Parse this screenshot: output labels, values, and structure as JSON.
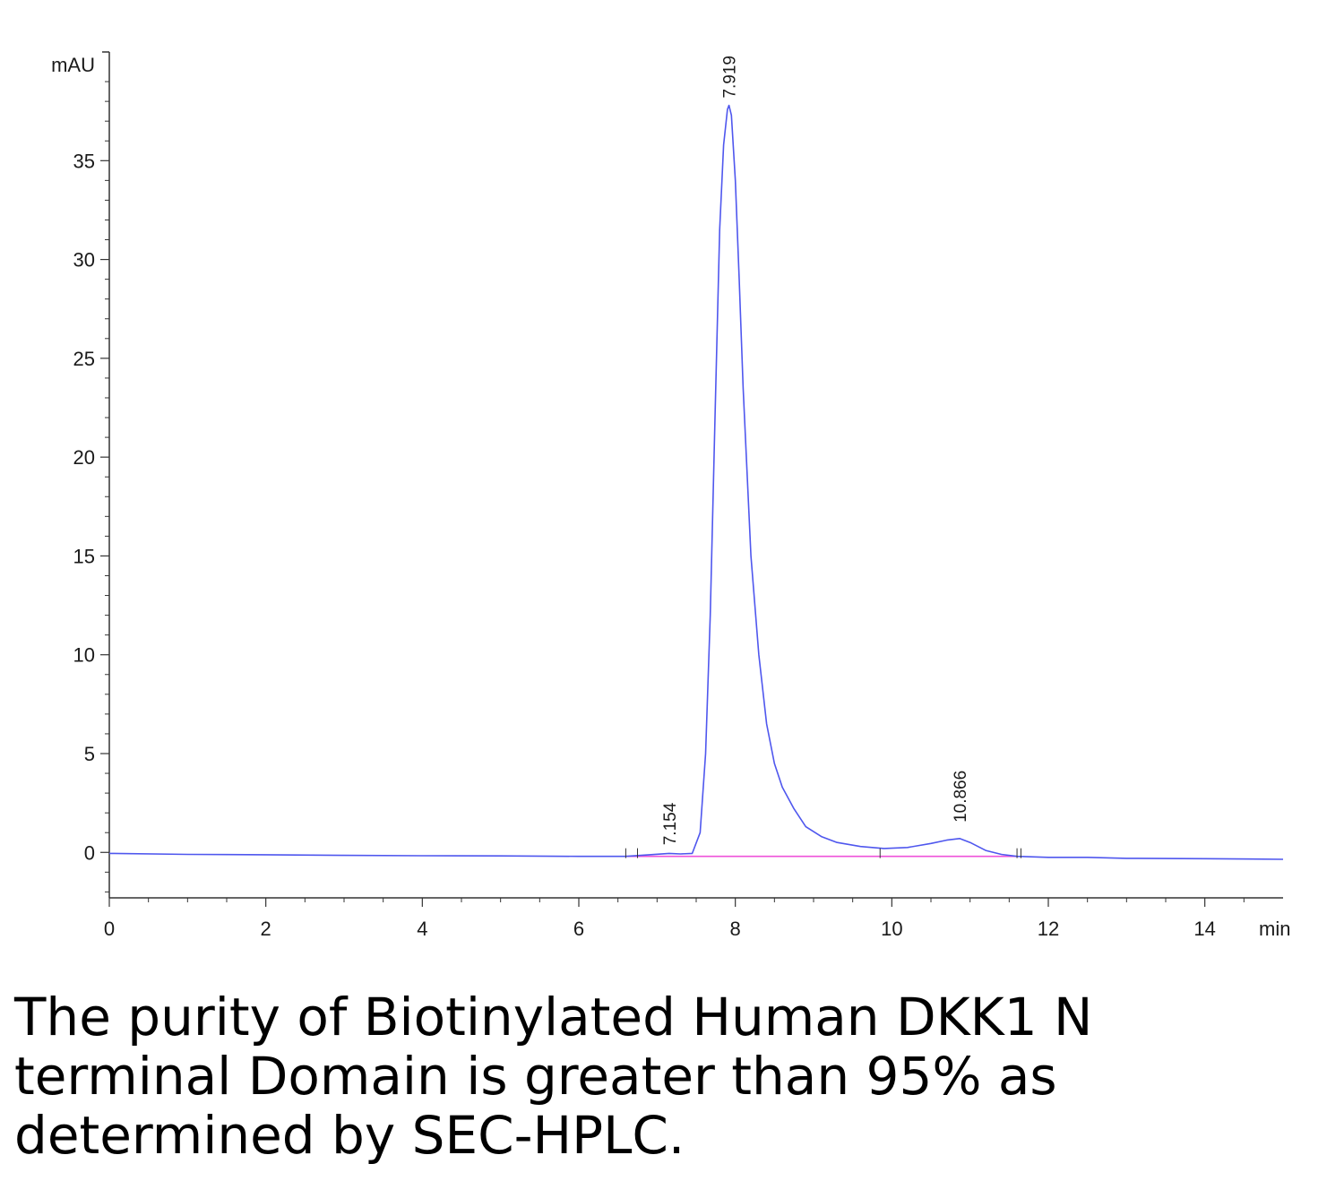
{
  "chart_data": {
    "type": "line",
    "ylabel": "mAU",
    "xlabel": "min",
    "xlim": [
      0,
      15
    ],
    "ylim": [
      -2.3,
      40.5
    ],
    "x_ticks": [
      "0",
      "2",
      "4",
      "6",
      "8",
      "10",
      "12",
      "14"
    ],
    "y_ticks": [
      "0",
      "5",
      "10",
      "15",
      "20",
      "25",
      "30",
      "35"
    ],
    "grid": false,
    "colors": {
      "signal": "#4f57ee",
      "baseline": "#ef52d9",
      "axis": "#333333"
    },
    "series": [
      {
        "x": [
          0,
          1,
          2,
          3,
          4,
          5,
          6,
          6.6,
          6.9,
          7.154,
          7.3,
          7.45,
          7.55,
          7.62,
          7.68,
          7.74,
          7.8,
          7.85,
          7.9,
          7.919,
          7.95,
          8.0,
          8.05,
          8.1,
          8.2,
          8.3,
          8.4,
          8.5,
          8.6,
          8.75,
          8.9,
          9.1,
          9.3,
          9.6,
          9.9,
          10.2,
          10.5,
          10.7,
          10.866,
          11.0,
          11.2,
          11.4,
          11.6,
          12.0,
          12.5,
          13.0,
          14.0,
          15.0
        ],
        "y": [
          -0.05,
          -0.1,
          -0.12,
          -0.15,
          -0.17,
          -0.18,
          -0.2,
          -0.2,
          -0.12,
          -0.05,
          -0.08,
          -0.05,
          1.0,
          5.0,
          12.0,
          22.0,
          31.5,
          35.8,
          37.6,
          37.8,
          37.3,
          34.0,
          29.0,
          23.5,
          15.0,
          10.0,
          6.5,
          4.5,
          3.3,
          2.2,
          1.3,
          0.8,
          0.5,
          0.3,
          0.2,
          0.25,
          0.45,
          0.62,
          0.7,
          0.5,
          0.1,
          -0.1,
          -0.2,
          -0.25,
          -0.25,
          -0.3,
          -0.32,
          -0.35
        ]
      }
    ],
    "baseline": {
      "x": [
        6.6,
        11.6
      ],
      "y": [
        -0.2,
        -0.2
      ]
    },
    "peaks": [
      {
        "label": "7.154",
        "x": 7.154,
        "y": 0.0
      },
      {
        "label": "7.919",
        "x": 7.919,
        "y": 37.8
      },
      {
        "label": "10.866",
        "x": 10.866,
        "y": 1.15
      }
    ]
  },
  "caption": "The purity of Biotinylated Human DKK1 N terminal Domain is greater than 95% as determined by SEC-HPLC."
}
